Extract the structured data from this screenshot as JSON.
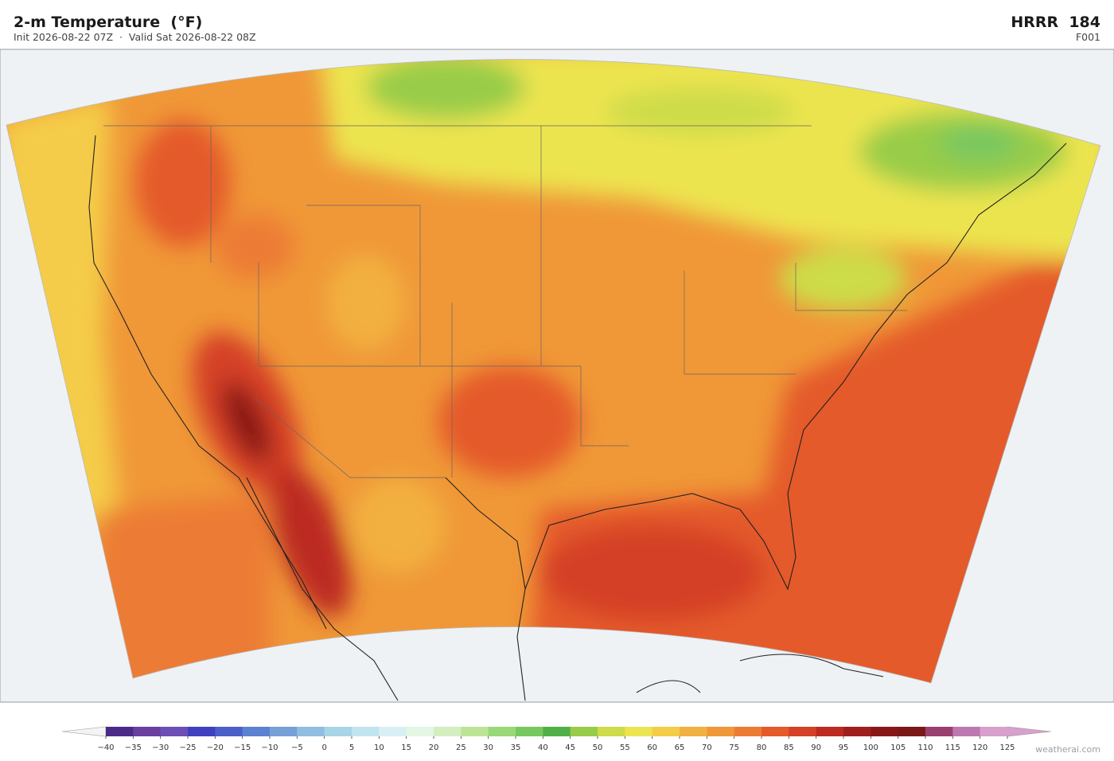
{
  "header": {
    "title": "2-m Temperature  (°F)",
    "subtitle": "Init 2026-08-22 07Z  ·  Valid Sat 2026-08-22 08Z",
    "model": "HRRR  184",
    "forecast_hour": "F001"
  },
  "colorbar": {
    "ticks": [
      {
        "value": -40,
        "label": "−40"
      },
      {
        "value": -35,
        "label": "−35"
      },
      {
        "value": -30,
        "label": "−30"
      },
      {
        "value": -25,
        "label": "−25"
      },
      {
        "value": -20,
        "label": "−20"
      },
      {
        "value": -15,
        "label": "−15"
      },
      {
        "value": -10,
        "label": "−10"
      },
      {
        "value": -5,
        "label": "−5"
      },
      0,
      5,
      10,
      15,
      20,
      25,
      30,
      35,
      40,
      45,
      50,
      55,
      60,
      65,
      70,
      75,
      80,
      85,
      90,
      95,
      100,
      105,
      110,
      115,
      120,
      125
    ],
    "colors": [
      "#4b2a8a",
      "#6a3fa0",
      "#6b4fb5",
      "#4040c0",
      "#4a5fc8",
      "#5b82d0",
      "#76a0d8",
      "#90bde0",
      "#a8d4e8",
      "#c0e4f0",
      "#d8f0f4",
      "#e4f6e4",
      "#d4eec0",
      "#bce496",
      "#98d878",
      "#78c860",
      "#50b048",
      "#98cc48",
      "#cddc48",
      "#ece450",
      "#f4cc48",
      "#f2b040",
      "#f09838",
      "#ec7c34",
      "#e45a2a",
      "#d44028",
      "#bc2a22",
      "#a01e1e",
      "#881818",
      "#7a1818",
      "#9a4070",
      "#bc78b0",
      "#d8a0cc"
    ],
    "under_color": "#f4f4f4",
    "over_color": "#d8a0cc"
  },
  "watermark": "weatherai.com"
}
